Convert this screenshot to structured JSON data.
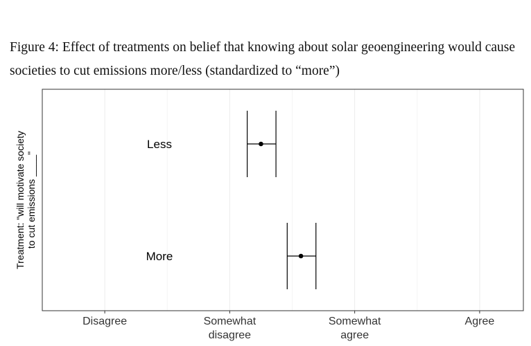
{
  "caption": {
    "line1": "Figure 4: Effect of treatments on belief that knowing about solar geoengineering would cause",
    "line2": "societies to cut emissions more/less (standardized to “more”)"
  },
  "chart_data": {
    "type": "scatter",
    "title": "Figure 4: Effect of treatments on belief that knowing about solar geoengineering would cause societies to cut emissions more/less (standardized to “more”)",
    "ylabel": [
      "Treatment: \"will motivate society",
      "to cut emissions ____\""
    ],
    "xlabel": "",
    "xlim": [
      0.5,
      4.35
    ],
    "x_ticks": [
      {
        "value": 1,
        "label": [
          "Disagree"
        ]
      },
      {
        "value": 2,
        "label": [
          "Somewhat",
          "disagree"
        ]
      },
      {
        "value": 3,
        "label": [
          "Somewhat",
          "agree"
        ]
      },
      {
        "value": 4,
        "label": [
          "Agree"
        ]
      }
    ],
    "categories": [
      "Less",
      "More"
    ],
    "points": [
      {
        "category": "Less",
        "estimate": 2.25,
        "ci_low": 2.14,
        "ci_high": 2.37
      },
      {
        "category": "More",
        "estimate": 2.57,
        "ci_low": 2.46,
        "ci_high": 2.69
      }
    ],
    "grid": true,
    "legend": "none"
  }
}
